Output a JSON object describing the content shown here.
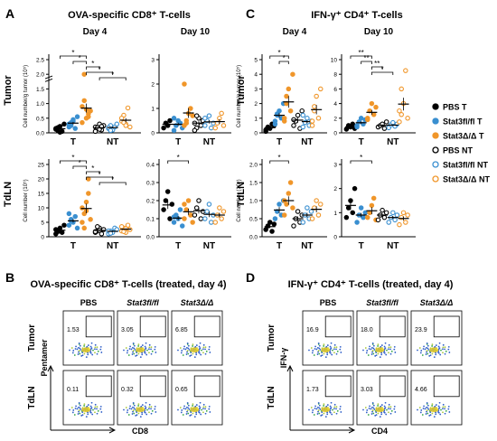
{
  "colors": {
    "black": "#000000",
    "blue": "#3a8fd0",
    "orange": "#f0962a",
    "gate": "#000000"
  },
  "panel_letters": [
    "A",
    "B",
    "C",
    "D"
  ],
  "panelA": {
    "title": "OVA-specific CD8⁺ T-cells",
    "row_labels": [
      "Tumor",
      "TdLN"
    ]
  },
  "panelC": {
    "title": "IFN-γ⁺ CD4⁺ T-cells",
    "row_labels": [
      "Tumor",
      "TdLN"
    ]
  },
  "panelB": {
    "title": "OVA-specific CD8⁺ T-cells (treated, day 4)",
    "col_labels": [
      "PBS",
      "Stat3fl/fl",
      "Stat3Δ/Δ"
    ],
    "row_labels": [
      "Tumor",
      "TdLN"
    ],
    "x_axis": "CD8",
    "y_axis": "Pentamer",
    "percents": [
      [
        "1.53",
        "3.05",
        "6.85"
      ],
      [
        "0.11",
        "0.32",
        "0.65"
      ]
    ]
  },
  "panelD": {
    "title": "IFN-γ⁺ CD4⁺ T-cells (treated, day 4)",
    "col_labels": [
      "PBS",
      "Stat3fl/fl",
      "Stat3Δ/Δ"
    ],
    "row_labels": [
      "Tumor",
      "TdLN"
    ],
    "x_axis": "CD4",
    "y_axis": "IFN-γ",
    "percents": [
      [
        "16.9",
        "18.0",
        "23.9"
      ],
      [
        "1.73",
        "3.03",
        "4.66"
      ]
    ]
  },
  "legend": [
    "PBS T",
    "Stat3fl/fl T",
    "Stat3Δ/Δ T",
    "PBS NT",
    "Stat3fl/fl NT",
    "Stat3Δ/Δ NT"
  ],
  "chart_data": [
    {
      "id": "A-tumor-d4",
      "type": "scatter",
      "title": "Day 4",
      "ylabel": "Cell number/g tumor (10⁵)",
      "yticks": [
        "0.0",
        "0.5",
        "1.0",
        "1.5",
        "2.0",
        "2.5"
      ],
      "ylim": [
        0,
        2.5
      ],
      "break": true,
      "categories": [
        "T",
        "NT"
      ],
      "groups": [
        [
          0.15,
          0.08,
          0.22,
          0.05,
          0.3,
          0.12,
          0.18,
          0.02
        ],
        [
          0.2,
          0.35,
          0.45,
          0.15,
          0.55,
          0.3,
          0.25,
          0.4
        ],
        [
          0.9,
          1.1,
          0.5,
          0.65,
          0.75,
          0.35,
          2.0,
          0.8,
          0.55
        ],
        [
          0.2,
          0.15,
          0.3,
          0.1,
          0.25,
          0.05,
          0.18,
          0.12,
          0.22
        ],
        [
          0.15,
          0.25,
          0.1,
          0.2,
          0.3,
          0.18,
          0.08
        ],
        [
          0.4,
          0.6,
          0.3,
          0.85,
          0.2,
          0.5,
          0.35,
          0.25
        ]
      ],
      "signif": [
        "*",
        "*",
        "*",
        "*",
        "*"
      ]
    },
    {
      "id": "A-tumor-d10",
      "type": "scatter",
      "title": "Day 10",
      "yticks": [
        "0",
        "1",
        "2",
        "3"
      ],
      "ylim": [
        0,
        3
      ],
      "categories": [
        "T",
        "NT"
      ],
      "groups": [
        [
          0.2,
          0.4,
          0.3,
          0.5
        ],
        [
          0.1,
          0.3,
          0.5,
          0.4,
          0.2,
          0.6
        ],
        [
          0.3,
          0.5,
          0.8,
          1.0,
          0.7,
          2.0,
          0.4
        ],
        [
          0.4,
          0.2,
          0.6,
          0.3,
          0.5,
          0.1,
          0.7
        ],
        [
          0.3,
          0.5,
          0.7,
          0.2,
          0.4,
          0.6
        ],
        [
          0.2,
          0.4,
          0.6,
          0.8,
          0.3
        ]
      ],
      "signif": []
    },
    {
      "id": "A-tdln-d4",
      "type": "scatter",
      "ylabel": "Cell number (10⁵)",
      "yticks": [
        "0",
        "5",
        "10",
        "15",
        "20",
        "25"
      ],
      "ylim": [
        0,
        25
      ],
      "categories": [
        "T",
        "NT"
      ],
      "groups": [
        [
          1,
          2,
          3,
          1.5,
          4,
          2.5,
          1.8
        ],
        [
          4,
          6,
          5,
          7,
          3,
          8,
          5.5
        ],
        [
          5,
          8,
          12,
          15,
          6,
          10,
          3,
          9,
          20
        ],
        [
          1.5,
          2,
          3,
          1,
          2.5,
          1.8,
          3.5,
          2.2
        ],
        [
          1,
          2,
          1.5,
          3,
          2.5,
          2,
          1.2
        ],
        [
          2,
          3,
          1.5,
          4,
          2.5,
          3.5,
          1.8,
          2.8
        ]
      ],
      "signif": [
        "*",
        "*",
        "*",
        "*",
        "*"
      ]
    },
    {
      "id": "A-tdln-d10",
      "type": "scatter",
      "yticks": [
        "0.0",
        "0.1",
        "0.2",
        "0.3",
        "0.4"
      ],
      "ylim": [
        0,
        0.4
      ],
      "categories": [
        "T",
        "NT"
      ],
      "groups": [
        [
          0.15,
          0.2,
          0.25,
          0.1,
          0.18
        ],
        [
          0.08,
          0.12,
          0.1,
          0.15,
          0.06,
          0.11
        ],
        [
          0.1,
          0.15,
          0.2,
          0.12,
          0.08,
          0.18
        ],
        [
          0.12,
          0.16,
          0.2,
          0.1,
          0.14
        ],
        [
          0.1,
          0.14,
          0.18,
          0.08,
          0.12
        ],
        [
          0.08,
          0.12,
          0.16,
          0.1,
          0.14
        ]
      ],
      "signif": [
        "*"
      ]
    },
    {
      "id": "C-tumor-d4",
      "type": "scatter",
      "title": "Day 4",
      "ylabel": "Cell number/g tumor (10⁵)",
      "yticks": [
        "0",
        "1",
        "2",
        "3",
        "4",
        "5"
      ],
      "ylim": [
        0,
        5
      ],
      "categories": [
        "T",
        "NT"
      ],
      "groups": [
        [
          0.2,
          0.4,
          0.3,
          0.6,
          0.5,
          0.1,
          0.35
        ],
        [
          0.8,
          1.2,
          1.5,
          1.0,
          2.0,
          0.6,
          1.3
        ],
        [
          1.0,
          2.0,
          3.0,
          1.5,
          4.0,
          0.8,
          2.5
        ],
        [
          0.5,
          0.8,
          1.2,
          0.3,
          1.5,
          0.9
        ],
        [
          0.4,
          0.7,
          1.0,
          0.5,
          0.8,
          1.2
        ],
        [
          0.8,
          1.5,
          2.5,
          1.0,
          3.0,
          0.5,
          1.8
        ]
      ],
      "signif": [
        "*",
        "*"
      ]
    },
    {
      "id": "C-tumor-d10",
      "type": "scatter",
      "title": "Day 10",
      "yticks": [
        "0",
        "2",
        "4",
        "6",
        "8",
        "10"
      ],
      "ylim": [
        0,
        10
      ],
      "categories": [
        "T",
        "NT"
      ],
      "groups": [
        [
          0.5,
          1.0,
          0.8,
          1.2,
          0.6
        ],
        [
          1.0,
          1.5,
          2.0,
          1.2,
          1.8,
          0.8
        ],
        [
          2.0,
          3.0,
          4.0,
          2.5,
          3.5,
          1.8
        ],
        [
          0.8,
          1.0,
          1.2,
          0.6,
          1.5
        ],
        [
          0.7,
          1.1,
          1.4,
          0.9,
          1.2
        ],
        [
          1.5,
          2.5,
          4.0,
          8.5,
          2.0,
          3.0,
          6.0
        ]
      ],
      "signif": [
        "**",
        "**",
        "**",
        "*"
      ]
    },
    {
      "id": "C-tdln-d4",
      "type": "scatter",
      "ylabel": "Cell number (10⁵)",
      "yticks": [
        "0.0",
        "0.5",
        "1.0",
        "1.5",
        "2.0"
      ],
      "ylim": [
        0,
        2
      ],
      "categories": [
        "T",
        "NT"
      ],
      "groups": [
        [
          0.2,
          0.3,
          0.4,
          0.15,
          0.35
        ],
        [
          0.5,
          0.7,
          0.9,
          0.6,
          1.0
        ],
        [
          0.6,
          0.9,
          1.2,
          1.5,
          0.8,
          1.0
        ],
        [
          0.3,
          0.5,
          0.7,
          0.4,
          0.6
        ],
        [
          0.4,
          0.6,
          0.8,
          0.5,
          0.7
        ],
        [
          0.5,
          0.8,
          1.0,
          0.6,
          0.9
        ]
      ],
      "signif": [
        "*"
      ]
    },
    {
      "id": "C-tdln-d10",
      "type": "scatter",
      "yticks": [
        "0",
        "1",
        "2",
        "3"
      ],
      "ylim": [
        0,
        3
      ],
      "categories": [
        "T",
        "NT"
      ],
      "groups": [
        [
          0.8,
          1.2,
          1.5,
          1.0,
          2.0
        ],
        [
          0.6,
          0.9,
          1.2,
          0.8,
          1.0
        ],
        [
          0.8,
          1.0,
          1.3,
          1.6,
          0.7
        ],
        [
          0.7,
          0.9,
          1.1,
          0.8,
          1.0
        ],
        [
          0.6,
          0.8,
          1.0,
          0.7,
          0.9
        ],
        [
          0.5,
          0.8,
          1.0,
          0.6,
          0.9
        ]
      ],
      "signif": [
        "*"
      ]
    }
  ]
}
